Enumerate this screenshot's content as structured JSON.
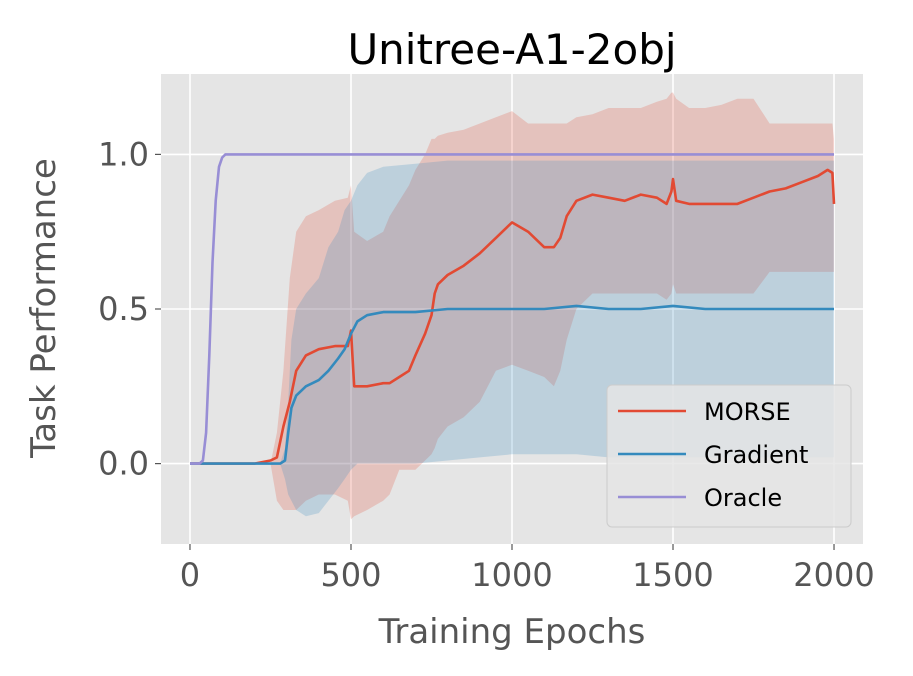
{
  "chart_data": {
    "type": "line",
    "title": "Unitree-A1-2obj",
    "xlabel": "Training Epochs",
    "ylabel": "Task Performance",
    "xlim": [
      -90,
      2090
    ],
    "ylim": [
      -0.26,
      1.26
    ],
    "x_ticks": [
      0,
      500,
      1000,
      1500,
      2000
    ],
    "x_tick_labels": [
      "0",
      "500",
      "1000",
      "1500",
      "2000"
    ],
    "y_ticks": [
      0.0,
      0.5,
      1.0
    ],
    "y_tick_labels": [
      "0.0",
      "0.5",
      "1.0"
    ],
    "grid": true,
    "legend_position": "lower-right",
    "series": [
      {
        "name": "MORSE",
        "color": "#E24A33",
        "x": [
          0,
          100,
          200,
          250,
          270,
          290,
          310,
          330,
          360,
          400,
          450,
          490,
          500,
          510,
          550,
          600,
          620,
          650,
          680,
          700,
          730,
          750,
          760,
          770,
          800,
          850,
          900,
          950,
          1000,
          1050,
          1100,
          1130,
          1150,
          1170,
          1200,
          1250,
          1300,
          1350,
          1400,
          1450,
          1480,
          1495,
          1500,
          1510,
          1550,
          1600,
          1650,
          1700,
          1750,
          1800,
          1850,
          1900,
          1950,
          1980,
          1995,
          2000
        ],
        "y": [
          0.0,
          0.0,
          0.0,
          0.01,
          0.02,
          0.12,
          0.2,
          0.3,
          0.35,
          0.37,
          0.38,
          0.38,
          0.43,
          0.25,
          0.25,
          0.26,
          0.26,
          0.28,
          0.3,
          0.35,
          0.42,
          0.48,
          0.55,
          0.58,
          0.61,
          0.64,
          0.68,
          0.73,
          0.78,
          0.75,
          0.7,
          0.7,
          0.73,
          0.8,
          0.85,
          0.87,
          0.86,
          0.85,
          0.87,
          0.86,
          0.84,
          0.88,
          0.92,
          0.85,
          0.84,
          0.84,
          0.84,
          0.84,
          0.86,
          0.88,
          0.89,
          0.91,
          0.93,
          0.95,
          0.94,
          0.84
        ],
        "band_low": [
          0.0,
          0.0,
          0.0,
          0.0,
          -0.12,
          -0.15,
          -0.15,
          -0.15,
          -0.12,
          -0.1,
          -0.1,
          -0.12,
          -0.18,
          -0.17,
          -0.15,
          -0.12,
          -0.1,
          -0.02,
          -0.02,
          -0.02,
          0.01,
          0.03,
          0.05,
          0.08,
          0.12,
          0.15,
          0.2,
          0.3,
          0.32,
          0.3,
          0.28,
          0.25,
          0.3,
          0.4,
          0.5,
          0.55,
          0.55,
          0.55,
          0.55,
          0.55,
          0.53,
          0.55,
          0.58,
          0.55,
          0.55,
          0.55,
          0.55,
          0.55,
          0.55,
          0.62,
          0.62,
          0.62,
          0.62,
          0.62,
          0.62,
          0.62
        ],
        "band_high": [
          0.0,
          0.0,
          0.0,
          0.0,
          0.1,
          0.3,
          0.6,
          0.75,
          0.8,
          0.82,
          0.85,
          0.86,
          0.9,
          0.75,
          0.72,
          0.75,
          0.8,
          0.85,
          0.9,
          0.95,
          1.0,
          1.05,
          1.05,
          1.06,
          1.07,
          1.08,
          1.1,
          1.12,
          1.14,
          1.1,
          1.1,
          1.1,
          1.1,
          1.1,
          1.12,
          1.13,
          1.15,
          1.15,
          1.15,
          1.17,
          1.18,
          1.2,
          1.2,
          1.18,
          1.15,
          1.15,
          1.16,
          1.18,
          1.18,
          1.1,
          1.1,
          1.1,
          1.1,
          1.1,
          1.1,
          1.05
        ]
      },
      {
        "name": "Gradient",
        "color": "#348ABD",
        "x": [
          0,
          100,
          200,
          280,
          295,
          305,
          315,
          330,
          360,
          400,
          430,
          460,
          480,
          500,
          520,
          550,
          600,
          700,
          800,
          900,
          1000,
          1100,
          1200,
          1300,
          1400,
          1500,
          1600,
          1700,
          1800,
          1900,
          2000
        ],
        "y": [
          0.0,
          0.0,
          0.0,
          0.0,
          0.01,
          0.1,
          0.18,
          0.22,
          0.25,
          0.27,
          0.3,
          0.34,
          0.37,
          0.42,
          0.46,
          0.48,
          0.49,
          0.49,
          0.5,
          0.5,
          0.5,
          0.5,
          0.51,
          0.5,
          0.5,
          0.51,
          0.5,
          0.5,
          0.5,
          0.5,
          0.5
        ],
        "band_low": [
          0.0,
          0.0,
          0.0,
          0.0,
          -0.05,
          -0.1,
          -0.12,
          -0.15,
          -0.17,
          -0.16,
          -0.12,
          -0.08,
          -0.05,
          -0.02,
          0.0,
          0.0,
          0.0,
          0.0,
          0.01,
          0.02,
          0.03,
          0.03,
          0.03,
          0.02,
          0.02,
          0.02,
          0.02,
          0.02,
          0.02,
          0.02,
          0.02
        ],
        "band_high": [
          0.0,
          0.0,
          0.0,
          0.0,
          0.05,
          0.2,
          0.4,
          0.5,
          0.55,
          0.6,
          0.7,
          0.75,
          0.82,
          0.85,
          0.9,
          0.94,
          0.96,
          0.97,
          0.98,
          0.98,
          0.98,
          0.98,
          0.98,
          0.98,
          0.98,
          0.98,
          0.98,
          0.98,
          0.98,
          0.98,
          0.98
        ]
      },
      {
        "name": "Oracle",
        "color": "#988ED5",
        "x": [
          0,
          30,
          40,
          50,
          60,
          70,
          80,
          90,
          100,
          110,
          120,
          150,
          200,
          500,
          1000,
          1500,
          2000
        ],
        "y": [
          0.0,
          0.0,
          0.01,
          0.1,
          0.35,
          0.65,
          0.85,
          0.96,
          0.99,
          1.0,
          1.0,
          1.0,
          1.0,
          1.0,
          1.0,
          1.0,
          1.0
        ]
      }
    ]
  }
}
